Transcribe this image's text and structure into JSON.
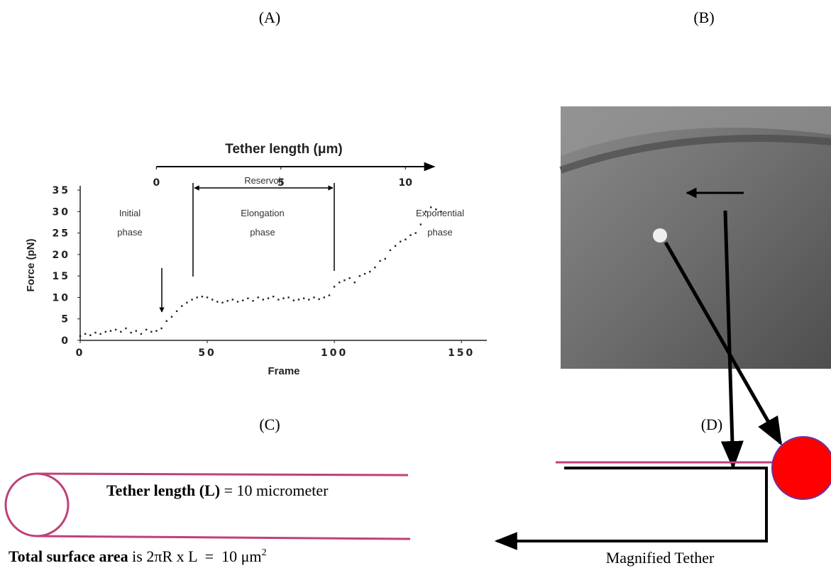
{
  "panels": {
    "a": "(A)",
    "b": "(B)",
    "c": "(C)",
    "d": "(D)"
  },
  "chart_data": {
    "type": "scatter",
    "x_label": "Frame",
    "y_label": "Force (pN)",
    "x2_label": "Tether length (μm)",
    "xlim": [
      0,
      160
    ],
    "xticks": [
      0,
      50,
      100,
      150
    ],
    "ylim": [
      0,
      36
    ],
    "yticks": [
      0,
      5,
      10,
      15,
      20,
      25,
      30,
      35
    ],
    "x2lim": [
      -3.06,
      13.27
    ],
    "x2ticks": [
      0,
      5,
      10
    ],
    "color": "#222",
    "x": [
      0,
      2,
      4,
      6,
      8,
      10,
      12,
      14,
      16,
      18,
      20,
      22,
      24,
      26,
      28,
      30,
      32,
      34,
      36,
      38,
      40,
      42,
      44,
      46,
      48,
      50,
      52,
      54,
      56,
      58,
      60,
      62,
      64,
      66,
      68,
      70,
      72,
      74,
      76,
      78,
      80,
      82,
      84,
      86,
      88,
      90,
      92,
      94,
      96,
      98,
      100,
      102,
      104,
      106,
      108,
      110,
      112,
      114,
      116,
      118,
      120,
      122,
      124,
      126,
      128,
      130,
      132,
      134,
      136,
      138,
      140,
      142
    ],
    "values": [
      1,
      1.5,
      1.2,
      1.8,
      1.5,
      2,
      2.2,
      2.5,
      2,
      2.8,
      1.8,
      2.2,
      1.5,
      2.5,
      2,
      2.2,
      2.8,
      4.5,
      5.5,
      6.8,
      8,
      8.8,
      9.5,
      10,
      10.2,
      10,
      9.5,
      9,
      8.8,
      9.2,
      9.5,
      9,
      9.3,
      9.8,
      9.2,
      10,
      9.5,
      9.8,
      10.2,
      9.5,
      9.8,
      10,
      9.3,
      9.5,
      9.8,
      9.5,
      10,
      9.6,
      10,
      10.5,
      12.5,
      13.5,
      14,
      14.5,
      13.5,
      15,
      15.5,
      16,
      17,
      18.5,
      19,
      21,
      22,
      23,
      23.5,
      24.5,
      25,
      27,
      30,
      31,
      30.5,
      30
    ],
    "annotations": {
      "initial": [
        "Initial",
        "phase"
      ],
      "reservoir": "Reservoir",
      "elongation": [
        "Elongation",
        "phase"
      ],
      "exponential": [
        "Exponential",
        "phase"
      ]
    }
  },
  "diagram": {
    "tether_label": "Tether length (L)",
    "tether_value": " = 10 micrometer",
    "area_label": "Total surface area",
    "area_value": " is 2πR x L  =  10 μm",
    "area_exp": "2",
    "magnified": "Magnified Tether"
  }
}
